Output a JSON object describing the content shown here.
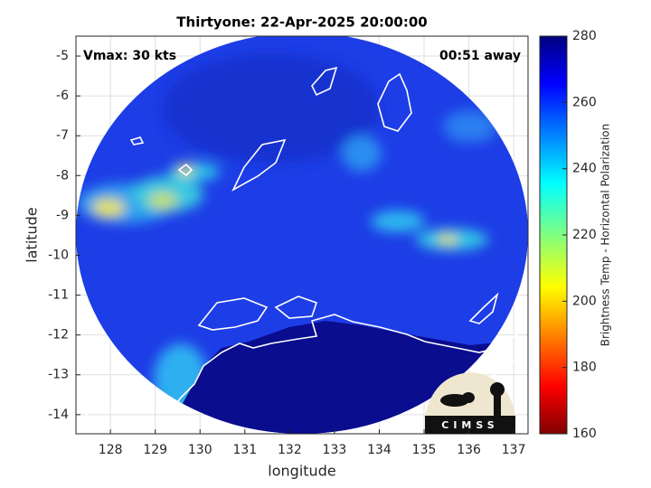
{
  "chart_data": {
    "type": "map",
    "title": "Thirtyone: 22-Apr-2025 20:00:00",
    "annotations": [
      "Vmax: 30 kts",
      "00:51 away"
    ],
    "xlabel": "longitude",
    "ylabel": "latitude",
    "xlim": [
      127.23,
      137.32
    ],
    "ylim": [
      -14.48,
      -4.5
    ],
    "xticks": [
      128,
      129,
      130,
      131,
      132,
      133,
      134,
      135,
      136,
      137
    ],
    "yticks": [
      -14,
      -13,
      -12,
      -11,
      -10,
      -9,
      -8,
      -7,
      -6,
      -5
    ],
    "grid": true,
    "colorbar": {
      "label": "Brightness Temp - Horizontal Polarization",
      "lim": [
        160,
        280
      ],
      "ticks": [
        160,
        180,
        200,
        220,
        240,
        260,
        280
      ]
    },
    "logo": "CIMSS"
  }
}
